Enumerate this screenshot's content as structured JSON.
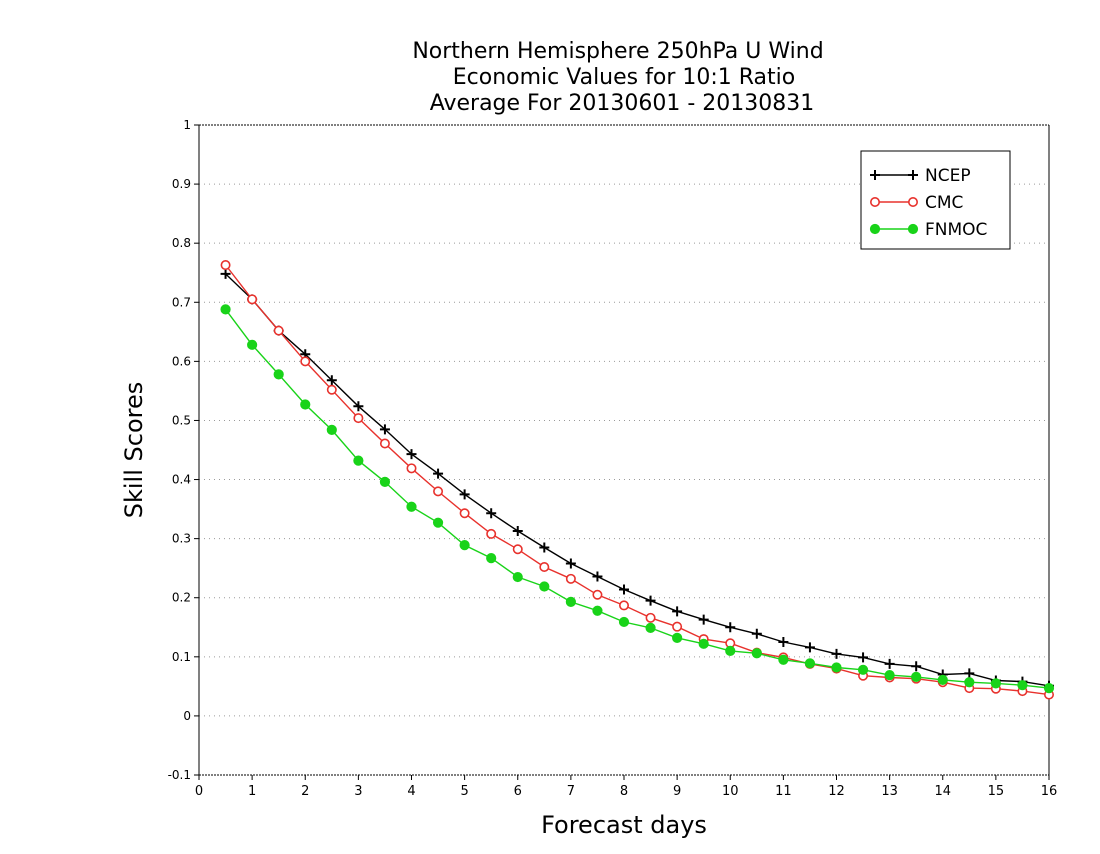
{
  "chart_data": {
    "type": "line",
    "title": [
      "Northern Hemisphere 250hPa U Wind",
      "Economic Values for 10:1 Ratio",
      "Average For 20130601 - 20130831"
    ],
    "xlabel": "Forecast days",
    "ylabel": "Skill Scores",
    "xlim": [
      0,
      16
    ],
    "ylim": [
      -0.1,
      1
    ],
    "xticks": [
      0,
      1,
      2,
      3,
      4,
      5,
      6,
      7,
      8,
      9,
      10,
      11,
      12,
      13,
      14,
      15,
      16
    ],
    "yticks": [
      -0.1,
      0,
      0.1,
      0.2,
      0.3,
      0.4,
      0.5,
      0.6,
      0.7,
      0.8,
      0.9,
      1
    ],
    "ytick_labels": [
      "-0.1",
      "0",
      "0.1",
      "0.2",
      "0.3",
      "0.4",
      "0.5",
      "0.6",
      "0.7",
      "0.8",
      "0.9",
      "1"
    ],
    "grid": "horizontal dotted",
    "legend_position": "top-right",
    "x": [
      0.5,
      1,
      1.5,
      2,
      2.5,
      3,
      3.5,
      4,
      4.5,
      5,
      5.5,
      6,
      6.5,
      7,
      7.5,
      8,
      8.5,
      9,
      9.5,
      10,
      10.5,
      11,
      11.5,
      12,
      12.5,
      13,
      13.5,
      14,
      14.5,
      15,
      15.5,
      16
    ],
    "series": [
      {
        "name": "NCEP",
        "color": "#000000",
        "marker": "plus",
        "values": [
          0.748,
          0.705,
          0.652,
          0.612,
          0.568,
          0.524,
          0.485,
          0.443,
          0.41,
          0.375,
          0.343,
          0.313,
          0.285,
          0.258,
          0.236,
          0.214,
          0.195,
          0.177,
          0.163,
          0.15,
          0.139,
          0.125,
          0.116,
          0.105,
          0.099,
          0.088,
          0.084,
          0.07,
          0.072,
          0.06,
          0.058,
          0.051
        ]
      },
      {
        "name": "CMC",
        "color": "#e8322d",
        "marker": "open-circle",
        "values": [
          0.763,
          0.705,
          0.652,
          0.6,
          0.552,
          0.504,
          0.461,
          0.419,
          0.38,
          0.343,
          0.308,
          0.282,
          0.252,
          0.232,
          0.205,
          0.187,
          0.166,
          0.151,
          0.13,
          0.123,
          0.107,
          0.099,
          0.088,
          0.08,
          0.068,
          0.065,
          0.063,
          0.057,
          0.047,
          0.046,
          0.042,
          0.036
        ]
      },
      {
        "name": "FNMOC",
        "color": "#19d319",
        "marker": "filled-circle",
        "values": [
          0.688,
          0.628,
          0.578,
          0.527,
          0.484,
          0.432,
          0.396,
          0.354,
          0.327,
          0.289,
          0.267,
          0.235,
          0.219,
          0.193,
          0.178,
          0.159,
          0.149,
          0.132,
          0.122,
          0.11,
          0.106,
          0.095,
          0.089,
          0.082,
          0.078,
          0.069,
          0.066,
          0.061,
          0.057,
          0.055,
          0.052,
          0.047
        ]
      }
    ]
  }
}
